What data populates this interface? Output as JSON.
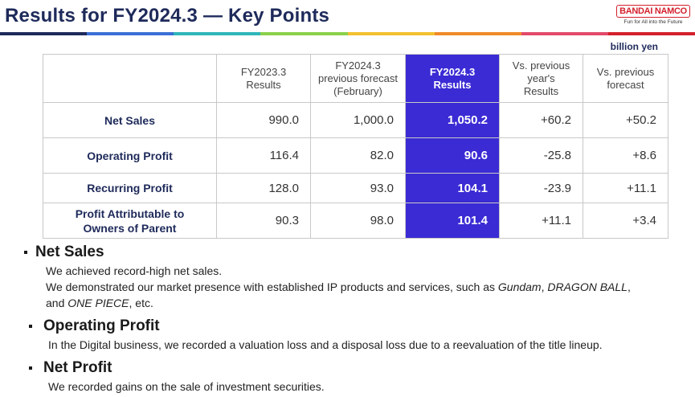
{
  "header": {
    "title": "Results for FY2024.3 — Key Points",
    "logo_text": "BANDAI NAMCO",
    "logo_tagline": "Fun for All into the Future",
    "stripe_colors": [
      "#1e2a5a",
      "#3b6fd6",
      "#2fb6b9",
      "#8ad14a",
      "#f2c12e",
      "#f08a2a",
      "#e24a6a",
      "#d4202c"
    ]
  },
  "table": {
    "unit": "billion yen",
    "columns": [
      {
        "line1": "FY2023.3",
        "line2": "Results",
        "line3": ""
      },
      {
        "line1": "FY2024.3",
        "line2": "previous forecast",
        "line3": "(February)"
      },
      {
        "line1": "FY2024.3",
        "line2": "Results",
        "line3": ""
      },
      {
        "line1": "Vs. previous",
        "line2": "year's",
        "line3": "Results"
      },
      {
        "line1": "Vs. previous",
        "line2": "forecast",
        "line3": ""
      }
    ],
    "rows": [
      {
        "label1": "Net Sales",
        "label2": "",
        "values": [
          "990.0",
          "1,000.0",
          "1,050.2",
          "+60.2",
          "+50.2"
        ]
      },
      {
        "label1": "Operating Profit",
        "label2": "",
        "values": [
          "116.4",
          "82.0",
          "90.6",
          "-25.8",
          "+8.6"
        ]
      },
      {
        "label1": "Recurring Profit",
        "label2": "",
        "values": [
          "128.0",
          "93.0",
          "104.1",
          "-23.9",
          "+11.1"
        ]
      },
      {
        "label1": "Profit Attributable to",
        "label2": "Owners of Parent",
        "values": [
          "90.3",
          "98.0",
          "101.4",
          "+11.1",
          "+3.4"
        ]
      }
    ],
    "highlight_color": "#3b2bd4"
  },
  "sections": {
    "net_sales": {
      "heading": "Net Sales",
      "line1": "We achieved record-high net sales.",
      "line2_pre": "We demonstrated our market presence with established IP products and services, such as ",
      "ip1": "Gundam",
      "sep1": ", ",
      "ip2": "DRAGON BALL",
      "sep2": ",",
      "line3_pre": "and ",
      "ip3": "ONE PIECE",
      "line3_post": ", etc."
    },
    "operating_profit": {
      "heading": "Operating Profit",
      "line1": "In the Digital business, we recorded a valuation loss and a disposal loss due to a reevaluation of the title lineup."
    },
    "net_profit": {
      "heading": "Net Profit",
      "line1": "We recorded gains on the sale of investment securities."
    }
  }
}
